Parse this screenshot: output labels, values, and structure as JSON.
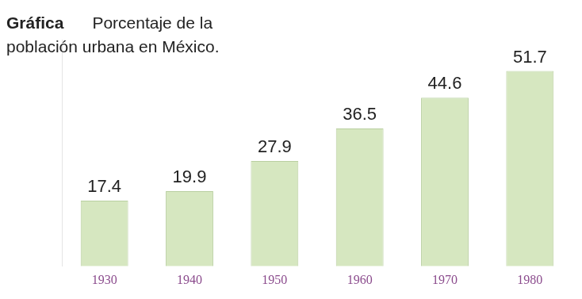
{
  "chart_data": {
    "type": "bar",
    "title": "Gráfica",
    "subtitle": "Porcentaje de la población urbana en México.",
    "categories": [
      "1930",
      "1940",
      "1950",
      "1960",
      "1970",
      "1980"
    ],
    "values": [
      17.4,
      19.9,
      27.9,
      36.5,
      44.6,
      51.7
    ],
    "color": "#d6e7c0",
    "ylim": [
      0,
      60
    ],
    "grid": false,
    "data_labels": true,
    "tick_labels": "x"
  }
}
